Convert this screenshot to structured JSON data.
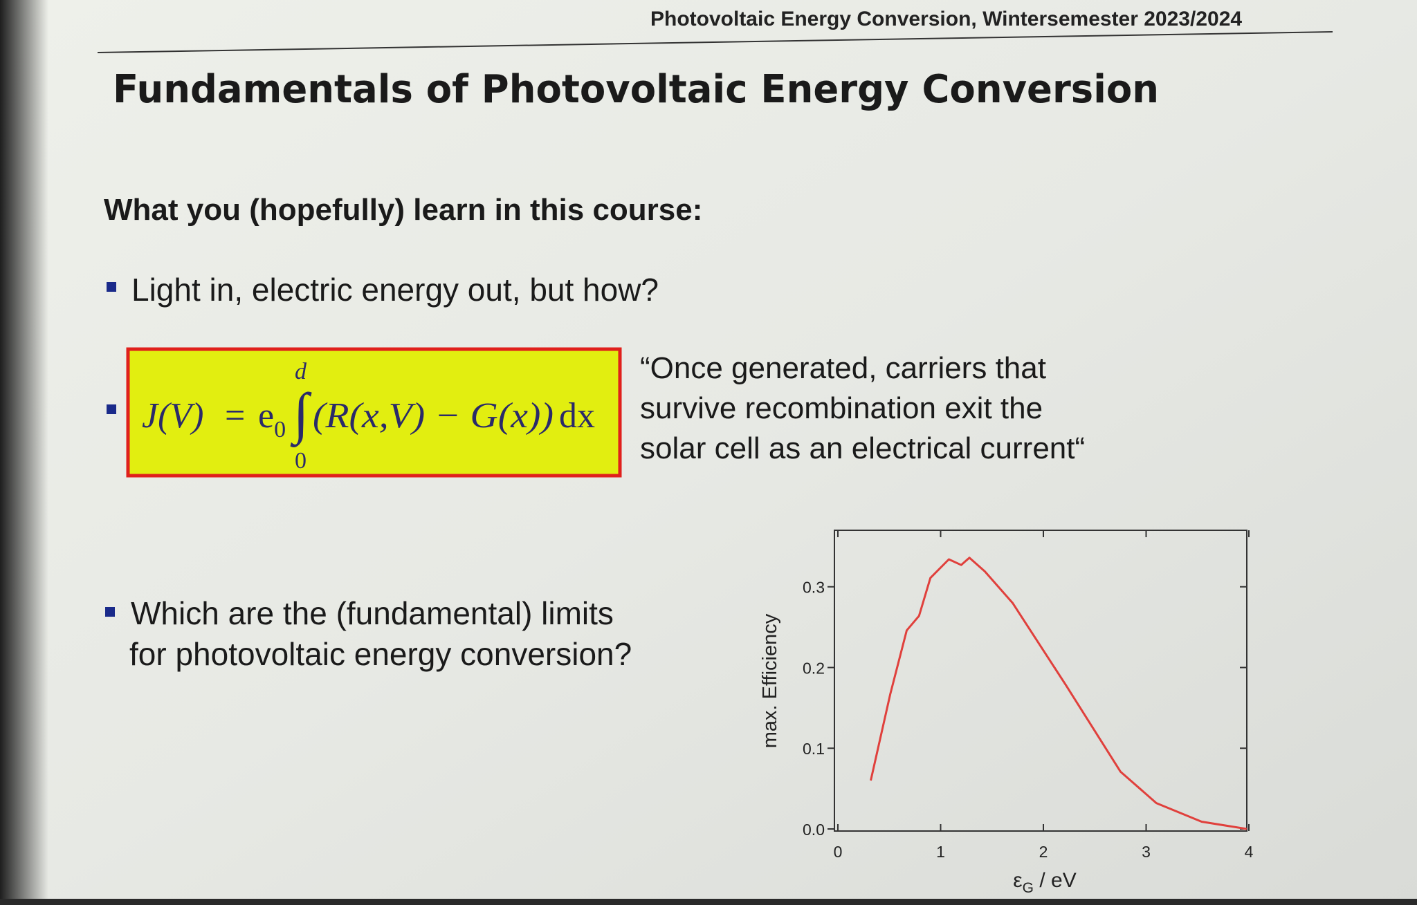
{
  "header": {
    "course": "Photovoltaic Energy Conversion, Wintersemester 2023/2024"
  },
  "title": "Fundamentals of Photovoltaic Energy Conversion",
  "subtitle": "What you (hopefully) learn in this course:",
  "bullets": [
    {
      "lines": [
        "Light in, electric energy out, but how?"
      ]
    },
    {
      "equation": {
        "lhs": "J(V)",
        "equals": "=",
        "e": "e",
        "e_sub": "0",
        "upper": "d",
        "lower": "0",
        "integrand": "(R(x,V) − G(x))",
        "dx": "dx"
      },
      "quote": [
        "“Once generated, carriers that",
        "survive recombination exit  the",
        "solar cell as an electrical current“"
      ]
    },
    {
      "lines": [
        "Which are the (fundamental) limits",
        "for photovoltaic energy conversion?"
      ]
    }
  ],
  "chart_data": {
    "type": "line",
    "ylabel": "max. Efficiency",
    "xlabel": [
      "ε",
      "G",
      " / eV"
    ],
    "x": [
      0.32,
      0.51,
      0.67,
      0.79,
      0.9,
      1.08,
      1.2,
      1.28,
      1.43,
      1.7,
      2.22,
      2.75,
      3.1,
      3.54,
      3.98
    ],
    "values": [
      0.06,
      0.167,
      0.246,
      0.264,
      0.311,
      0.334,
      0.327,
      0.336,
      0.319,
      0.28,
      0.178,
      0.071,
      0.032,
      0.009,
      0.0
    ],
    "color": "#e0403c",
    "xlim": [
      0,
      4
    ],
    "ylim": [
      0,
      0.37
    ],
    "xticks": [
      0,
      1,
      2,
      3,
      4
    ],
    "yticks": [
      {
        "value": 0,
        "label": "0.0"
      },
      0.1,
      0.2,
      0.3
    ]
  }
}
